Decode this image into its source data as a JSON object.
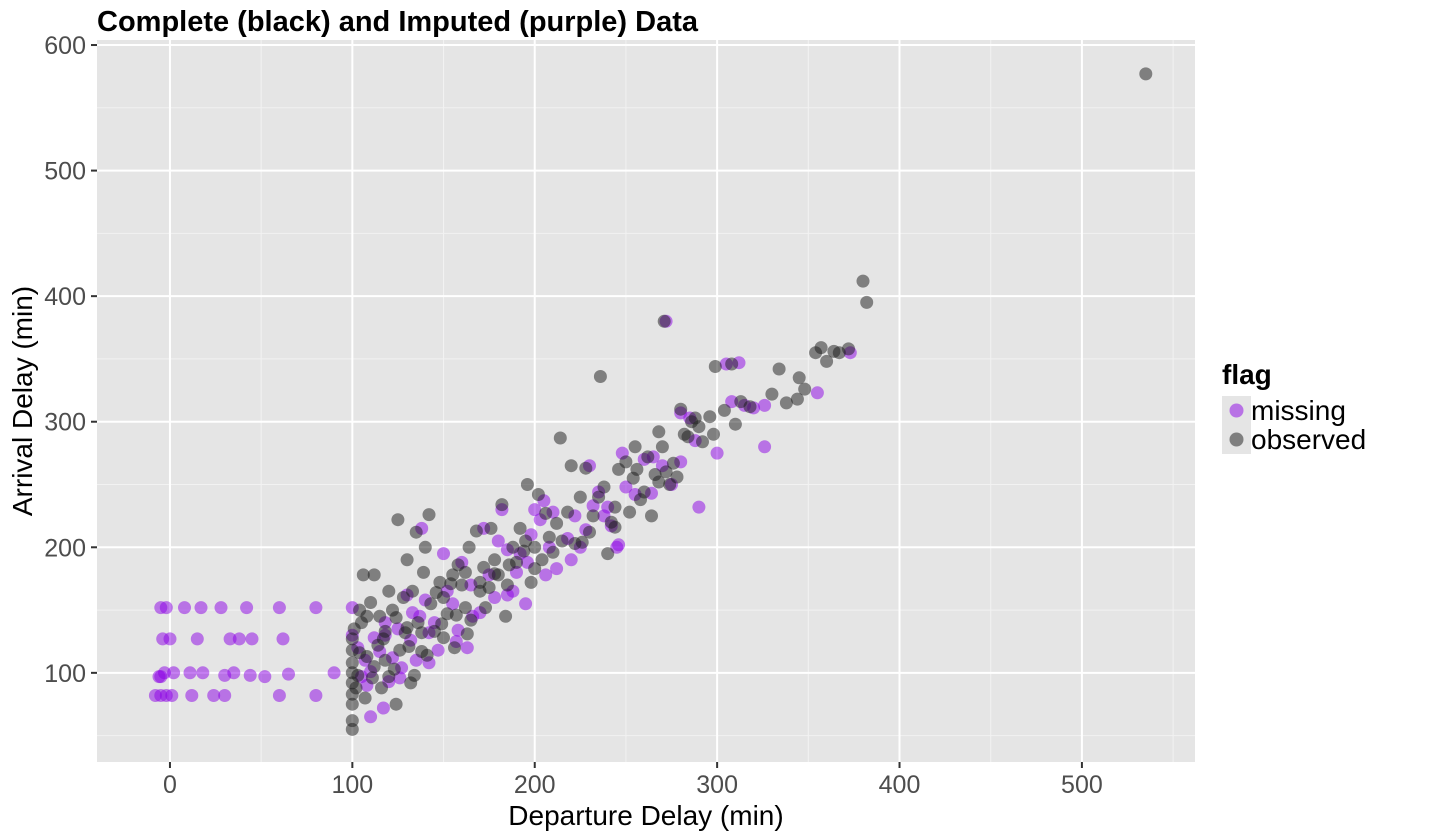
{
  "chart_data": {
    "type": "scatter",
    "title": "Complete (black) and Imputed (purple) Data",
    "xlabel": "Departure Delay (min)",
    "ylabel": "Arrival Delay (min)",
    "xlim": [
      -40,
      562
    ],
    "ylim": [
      29,
      604
    ],
    "x_ticks": [
      0,
      100,
      200,
      300,
      400,
      500
    ],
    "y_ticks": [
      100,
      200,
      300,
      400,
      500,
      600
    ],
    "x_tick_labels": [
      "0",
      "100",
      "200",
      "300",
      "400",
      "500"
    ],
    "y_tick_labels": [
      "100",
      "200",
      "300",
      "400",
      "500",
      "600"
    ],
    "grid": true,
    "legend": {
      "title": "flag",
      "position": "right",
      "entries": [
        {
          "label": "missing",
          "color": "#8b00e6"
        },
        {
          "label": "observed",
          "color": "#1a1a1a"
        }
      ]
    },
    "series": [
      {
        "name": "missing",
        "color": "#8b00e6",
        "points": [
          [
            -5,
            152
          ],
          [
            -4,
            127
          ],
          [
            -3,
            100
          ],
          [
            -2,
            82
          ],
          [
            -5,
            97
          ],
          [
            -2,
            152
          ],
          [
            0,
            127
          ],
          [
            1,
            82
          ],
          [
            2,
            100
          ],
          [
            8,
            152
          ],
          [
            11,
            100
          ],
          [
            12,
            82
          ],
          [
            15,
            127
          ],
          [
            17,
            152
          ],
          [
            18,
            100
          ],
          [
            24,
            82
          ],
          [
            28,
            152
          ],
          [
            30,
            98
          ],
          [
            33,
            127
          ],
          [
            35,
            100
          ],
          [
            38,
            127
          ],
          [
            42,
            152
          ],
          [
            44,
            98
          ],
          [
            45,
            127
          ],
          [
            60,
            152
          ],
          [
            62,
            127
          ],
          [
            65,
            99
          ],
          [
            80,
            152
          ],
          [
            80,
            82
          ],
          [
            90,
            100
          ],
          [
            -8,
            82
          ],
          [
            -5,
            82
          ],
          [
            30,
            82
          ],
          [
            52,
            97
          ],
          [
            -6,
            97
          ],
          [
            60,
            82
          ],
          [
            100,
            152
          ],
          [
            100,
            130
          ],
          [
            103,
            120
          ],
          [
            105,
            97
          ],
          [
            107,
            110
          ],
          [
            108,
            90
          ],
          [
            110,
            101
          ],
          [
            110,
            65
          ],
          [
            112,
            128
          ],
          [
            115,
            117
          ],
          [
            117,
            72
          ],
          [
            118,
            130
          ],
          [
            120,
            93
          ],
          [
            122,
            112
          ],
          [
            125,
            135
          ],
          [
            127,
            104
          ],
          [
            130,
            162
          ],
          [
            132,
            126
          ],
          [
            135,
            110
          ],
          [
            137,
            145
          ],
          [
            138,
            215
          ],
          [
            140,
            158
          ],
          [
            142,
            132
          ],
          [
            145,
            140
          ],
          [
            147,
            118
          ],
          [
            150,
            195
          ],
          [
            152,
            165
          ],
          [
            155,
            155
          ],
          [
            157,
            125
          ],
          [
            160,
            188
          ],
          [
            163,
            120
          ],
          [
            165,
            170
          ],
          [
            170,
            148
          ],
          [
            172,
            215
          ],
          [
            175,
            178
          ],
          [
            178,
            160
          ],
          [
            180,
            205
          ],
          [
            182,
            230
          ],
          [
            185,
            162
          ],
          [
            188,
            165
          ],
          [
            190,
            180
          ],
          [
            192,
            195
          ],
          [
            195,
            155
          ],
          [
            198,
            210
          ],
          [
            200,
            230
          ],
          [
            203,
            222
          ],
          [
            206,
            178
          ],
          [
            208,
            200
          ],
          [
            210,
            228
          ],
          [
            212,
            183
          ],
          [
            220,
            190
          ],
          [
            222,
            225
          ],
          [
            225,
            200
          ],
          [
            228,
            214
          ],
          [
            230,
            265
          ],
          [
            232,
            233
          ],
          [
            235,
            244
          ],
          [
            238,
            225
          ],
          [
            240,
            232
          ],
          [
            242,
            217
          ],
          [
            245,
            200
          ],
          [
            248,
            275
          ],
          [
            250,
            248
          ],
          [
            255,
            242
          ],
          [
            260,
            270
          ],
          [
            265,
            272
          ],
          [
            270,
            265
          ],
          [
            272,
            380
          ],
          [
            275,
            250
          ],
          [
            280,
            268
          ],
          [
            285,
            303
          ],
          [
            288,
            285
          ],
          [
            290,
            232
          ],
          [
            300,
            275
          ],
          [
            305,
            346
          ],
          [
            308,
            316
          ],
          [
            312,
            347
          ],
          [
            315,
            313
          ],
          [
            320,
            311
          ],
          [
            326,
            313
          ],
          [
            326,
            280
          ],
          [
            355,
            323
          ],
          [
            373,
            355
          ],
          [
            118,
            140
          ],
          [
            126,
            96
          ],
          [
            133,
            148
          ],
          [
            142,
            108
          ],
          [
            158,
            134
          ],
          [
            166,
            145
          ],
          [
            185,
            198
          ],
          [
            196,
            188
          ],
          [
            205,
            237
          ],
          [
            218,
            207
          ],
          [
            246,
            202
          ],
          [
            264,
            243
          ],
          [
            280,
            307
          ]
        ]
      },
      {
        "name": "observed",
        "color": "#1a1a1a",
        "points": [
          [
            100,
            55
          ],
          [
            100,
            62
          ],
          [
            100,
            75
          ],
          [
            100,
            83
          ],
          [
            100,
            92
          ],
          [
            100,
            100
          ],
          [
            100,
            108
          ],
          [
            100,
            118
          ],
          [
            100,
            127
          ],
          [
            101,
            135
          ],
          [
            102,
            88
          ],
          [
            103,
            98
          ],
          [
            104,
            150
          ],
          [
            105,
            140
          ],
          [
            106,
            178
          ],
          [
            107,
            80
          ],
          [
            108,
            113
          ],
          [
            110,
            156
          ],
          [
            112,
            178
          ],
          [
            112,
            105
          ],
          [
            114,
            122
          ],
          [
            115,
            145
          ],
          [
            116,
            88
          ],
          [
            118,
            133
          ],
          [
            120,
            165
          ],
          [
            120,
            97
          ],
          [
            122,
            150
          ],
          [
            124,
            75
          ],
          [
            125,
            222
          ],
          [
            126,
            118
          ],
          [
            128,
            160
          ],
          [
            130,
            190
          ],
          [
            130,
            136
          ],
          [
            132,
            92
          ],
          [
            133,
            165
          ],
          [
            135,
            212
          ],
          [
            136,
            140
          ],
          [
            138,
            117
          ],
          [
            139,
            180
          ],
          [
            140,
            200
          ],
          [
            142,
            226
          ],
          [
            143,
            155
          ],
          [
            145,
            133
          ],
          [
            148,
            172
          ],
          [
            150,
            160
          ],
          [
            150,
            128
          ],
          [
            152,
            147
          ],
          [
            155,
            178
          ],
          [
            156,
            120
          ],
          [
            158,
            186
          ],
          [
            160,
            170
          ],
          [
            162,
            152
          ],
          [
            164,
            200
          ],
          [
            165,
            142
          ],
          [
            168,
            213
          ],
          [
            170,
            165
          ],
          [
            172,
            184
          ],
          [
            175,
            168
          ],
          [
            176,
            215
          ],
          [
            178,
            190
          ],
          [
            180,
            178
          ],
          [
            182,
            234
          ],
          [
            184,
            145
          ],
          [
            185,
            170
          ],
          [
            188,
            200
          ],
          [
            190,
            188
          ],
          [
            192,
            215
          ],
          [
            195,
            205
          ],
          [
            196,
            250
          ],
          [
            198,
            172
          ],
          [
            200,
            200
          ],
          [
            200,
            183
          ],
          [
            202,
            242
          ],
          [
            204,
            190
          ],
          [
            206,
            227
          ],
          [
            208,
            208
          ],
          [
            210,
            196
          ],
          [
            214,
            287
          ],
          [
            215,
            205
          ],
          [
            218,
            228
          ],
          [
            220,
            265
          ],
          [
            222,
            203
          ],
          [
            225,
            240
          ],
          [
            228,
            263
          ],
          [
            230,
            212
          ],
          [
            232,
            225
          ],
          [
            235,
            240
          ],
          [
            236,
            336
          ],
          [
            238,
            248
          ],
          [
            240,
            195
          ],
          [
            242,
            220
          ],
          [
            244,
            232
          ],
          [
            246,
            262
          ],
          [
            250,
            268
          ],
          [
            252,
            228
          ],
          [
            254,
            255
          ],
          [
            255,
            280
          ],
          [
            258,
            238
          ],
          [
            260,
            244
          ],
          [
            262,
            272
          ],
          [
            264,
            225
          ],
          [
            266,
            258
          ],
          [
            268,
            292
          ],
          [
            270,
            280
          ],
          [
            271,
            380
          ],
          [
            272,
            260
          ],
          [
            274,
            250
          ],
          [
            276,
            267
          ],
          [
            278,
            256
          ],
          [
            280,
            310
          ],
          [
            282,
            290
          ],
          [
            284,
            288
          ],
          [
            286,
            300
          ],
          [
            288,
            303
          ],
          [
            290,
            296
          ],
          [
            292,
            284
          ],
          [
            296,
            304
          ],
          [
            298,
            290
          ],
          [
            299,
            344
          ],
          [
            304,
            309
          ],
          [
            308,
            346
          ],
          [
            310,
            298
          ],
          [
            313,
            316
          ],
          [
            318,
            312
          ],
          [
            330,
            322
          ],
          [
            334,
            342
          ],
          [
            338,
            315
          ],
          [
            344,
            318
          ],
          [
            345,
            335
          ],
          [
            348,
            326
          ],
          [
            354,
            355
          ],
          [
            357,
            359
          ],
          [
            360,
            348
          ],
          [
            364,
            356
          ],
          [
            367,
            355
          ],
          [
            372,
            358
          ],
          [
            380,
            412
          ],
          [
            382,
            395
          ],
          [
            535,
            577
          ],
          [
            108,
            145
          ],
          [
            118,
            110
          ],
          [
            124,
            144
          ],
          [
            131,
            121
          ],
          [
            138,
            132
          ],
          [
            146,
            164
          ],
          [
            154,
            171
          ],
          [
            162,
            180
          ],
          [
            170,
            172
          ],
          [
            178,
            179
          ],
          [
            186,
            186
          ],
          [
            194,
            197
          ],
          [
            212,
            219
          ],
          [
            226,
            204
          ],
          [
            244,
            216
          ],
          [
            256,
            262
          ],
          [
            268,
            252
          ],
          [
            104,
            116
          ],
          [
            111,
            96
          ],
          [
            117,
            127
          ],
          [
            123,
            103
          ],
          [
            129,
            132
          ],
          [
            134,
            98
          ],
          [
            141,
            114
          ],
          [
            149,
            139
          ],
          [
            157,
            146
          ],
          [
            163,
            131
          ],
          [
            173,
            152
          ]
        ]
      }
    ]
  }
}
